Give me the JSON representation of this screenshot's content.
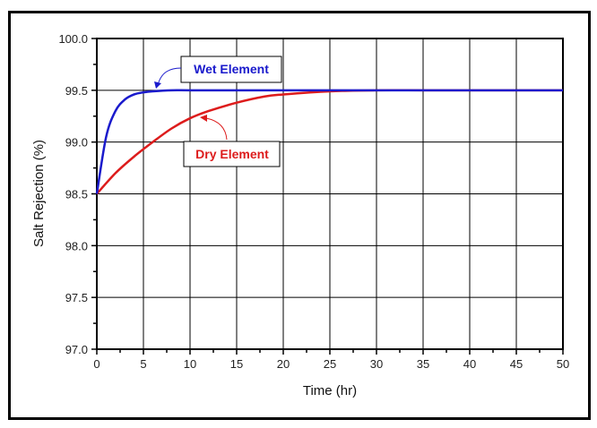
{
  "chart_data": {
    "type": "line",
    "title": "",
    "xlabel": "Time (hr)",
    "ylabel": "Salt Rejection (%)",
    "xlim": [
      0,
      50
    ],
    "ylim": [
      97.0,
      100.0
    ],
    "x_ticks": [
      "0",
      "5",
      "10",
      "15",
      "20",
      "25",
      "30",
      "35",
      "40",
      "45",
      "50"
    ],
    "y_ticks": [
      "97.0",
      "97.5",
      "98.0",
      "98.5",
      "99.0",
      "99.5",
      "100.0"
    ],
    "grid": true,
    "legend": "none (inline annotations)",
    "series": [
      {
        "name": "Wet Element",
        "color": "#1a1acc",
        "x": [
          0,
          1,
          2,
          3,
          4,
          5,
          6,
          8,
          10,
          15,
          20,
          25,
          30,
          35,
          40,
          45,
          50
        ],
        "y": [
          98.5,
          99.05,
          99.3,
          99.41,
          99.46,
          99.48,
          99.49,
          99.5,
          99.5,
          99.5,
          99.5,
          99.5,
          99.5,
          99.5,
          99.5,
          99.5,
          99.5
        ]
      },
      {
        "name": "Dry Element",
        "color": "#dd1c1c",
        "x": [
          0,
          2,
          4,
          6,
          8,
          10,
          12,
          15,
          18,
          20,
          25,
          30,
          35,
          40,
          45,
          50
        ],
        "y": [
          98.5,
          98.7,
          98.86,
          99.0,
          99.13,
          99.23,
          99.3,
          99.38,
          99.44,
          99.46,
          99.49,
          99.5,
          99.5,
          99.5,
          99.5,
          99.5
        ]
      }
    ],
    "annotations": [
      {
        "text": "Wet Element",
        "color": "#1a1acc",
        "points_to": {
          "x": 6.5,
          "y": 99.5
        }
      },
      {
        "text": "Dry Element",
        "color": "#dd1c1c",
        "points_to": {
          "x": 11,
          "y": 99.27
        }
      }
    ]
  }
}
